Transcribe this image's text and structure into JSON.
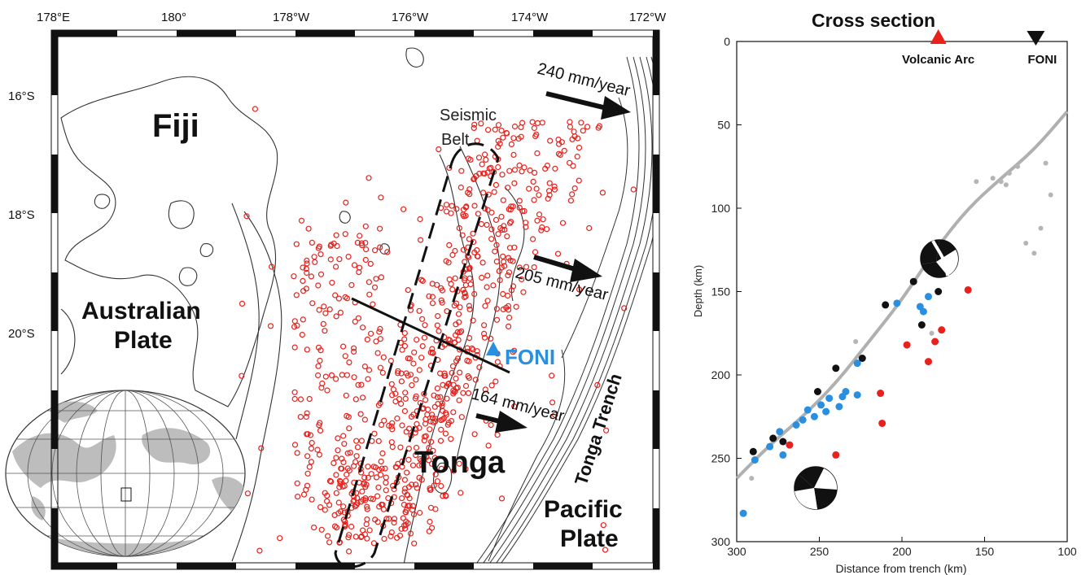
{
  "map": {
    "lon_labels": [
      "178°E",
      "180°",
      "178°W",
      "176°W",
      "174°W",
      "172°W"
    ],
    "lat_labels": [
      "16°S",
      "18°S",
      "20°S"
    ],
    "regions": {
      "fiji": "Fiji",
      "australian_plate_line1": "Australian",
      "australian_plate_line2": "Plate",
      "tonga": "Tonga",
      "pacific_plate_line1": "Pacific",
      "pacific_plate_line2": "Plate",
      "tonga_trench": "Tonga Trench"
    },
    "seismic_belt_line1": "Seismic",
    "seismic_belt_line2": "Belt",
    "station": "FONI",
    "plate_rates": [
      "240 mm/year",
      "205 mm/year",
      "164 mm/year"
    ],
    "colors": {
      "earthquake": "#e8211c",
      "station": "#2b8fe0",
      "coast": "#333333"
    }
  },
  "cross_section": {
    "title": "Cross section",
    "markers": {
      "volcanic_arc": "Volcanic Arc",
      "station": "FONI"
    },
    "ylabel": "Depth (km)",
    "xlabel": "Distance from trench (km)",
    "x_ticks": [
      "300",
      "250",
      "200",
      "150",
      "100"
    ],
    "y_ticks": [
      "0",
      "50",
      "100",
      "150",
      "200",
      "250",
      "300"
    ],
    "colors": {
      "red": "#e8211c",
      "blue": "#2b8fe0",
      "black": "#111111",
      "gray": "#b5b5b5",
      "slab": "#b0b0b0"
    }
  },
  "chart_data": {
    "type": "scatter",
    "title": "Cross section",
    "xlabel": "Distance from trench (km)",
    "ylabel": "Depth (km)",
    "xlim": [
      300,
      100
    ],
    "ylim": [
      300,
      0
    ],
    "markers": [
      {
        "name": "Volcanic Arc",
        "x": 178,
        "y": 0,
        "color": "red"
      },
      {
        "name": "FONI",
        "x": 119,
        "y": 0,
        "color": "black"
      }
    ],
    "slab_curve": [
      [
        300,
        262
      ],
      [
        280,
        242
      ],
      [
        260,
        225
      ],
      [
        240,
        205
      ],
      [
        220,
        180
      ],
      [
        200,
        155
      ],
      [
        180,
        125
      ],
      [
        160,
        100
      ],
      [
        140,
        82
      ],
      [
        120,
        65
      ],
      [
        100,
        42
      ]
    ],
    "series": [
      {
        "color": "blue",
        "x": [
          296,
          289,
          280,
          274,
          272,
          264,
          260,
          257,
          253,
          249,
          246,
          244,
          238,
          236,
          234,
          227,
          227,
          203,
          181,
          184,
          187,
          189
        ],
        "y": [
          283,
          251,
          243,
          234,
          248,
          230,
          227,
          221,
          225,
          218,
          222,
          214,
          219,
          213,
          210,
          212,
          193,
          157,
          137,
          153,
          162,
          159
        ]
      },
      {
        "color": "black",
        "x": [
          290,
          278,
          272,
          251,
          240,
          224,
          210,
          193,
          188,
          178
        ],
        "y": [
          246,
          238,
          240,
          210,
          196,
          190,
          158,
          144,
          170,
          150
        ]
      },
      {
        "color": "red",
        "x": [
          268,
          255,
          240,
          213,
          212,
          197,
          184,
          180,
          176,
          160
        ],
        "y": [
          242,
          265,
          248,
          211,
          229,
          182,
          192,
          180,
          173,
          149
        ]
      },
      {
        "color": "gray",
        "x": [
          291,
          228,
          182,
          155,
          145,
          140,
          137,
          135,
          130,
          125,
          120,
          116,
          113,
          110
        ],
        "y": [
          262,
          180,
          175,
          84,
          82,
          84,
          86,
          79,
          75,
          121,
          127,
          112,
          73,
          92
        ]
      }
    ]
  }
}
